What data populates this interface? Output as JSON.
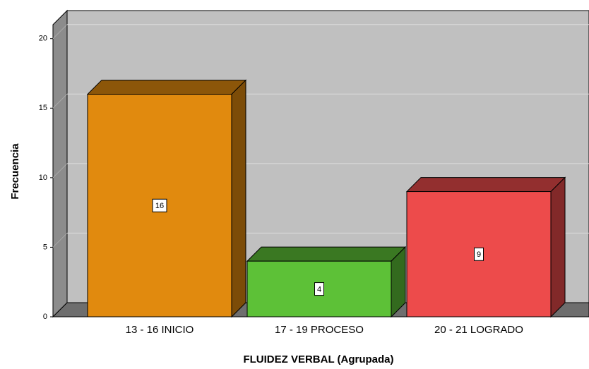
{
  "chart_data": {
    "type": "bar3d",
    "categories": [
      "13 - 16 INICIO",
      "17 - 19 PROCESO",
      "20 - 21 LOGRADO"
    ],
    "values": [
      16,
      4,
      9
    ],
    "colors": [
      "#e18a0e",
      "#5dc137",
      "#ed4b4b"
    ],
    "x_label": "FLUIDEZ VERBAL (Agrupada)",
    "y_label": "Frecuencia",
    "ylim": [
      0,
      21
    ],
    "yticks": [
      0,
      5,
      10,
      15,
      20
    ],
    "grid": true
  }
}
